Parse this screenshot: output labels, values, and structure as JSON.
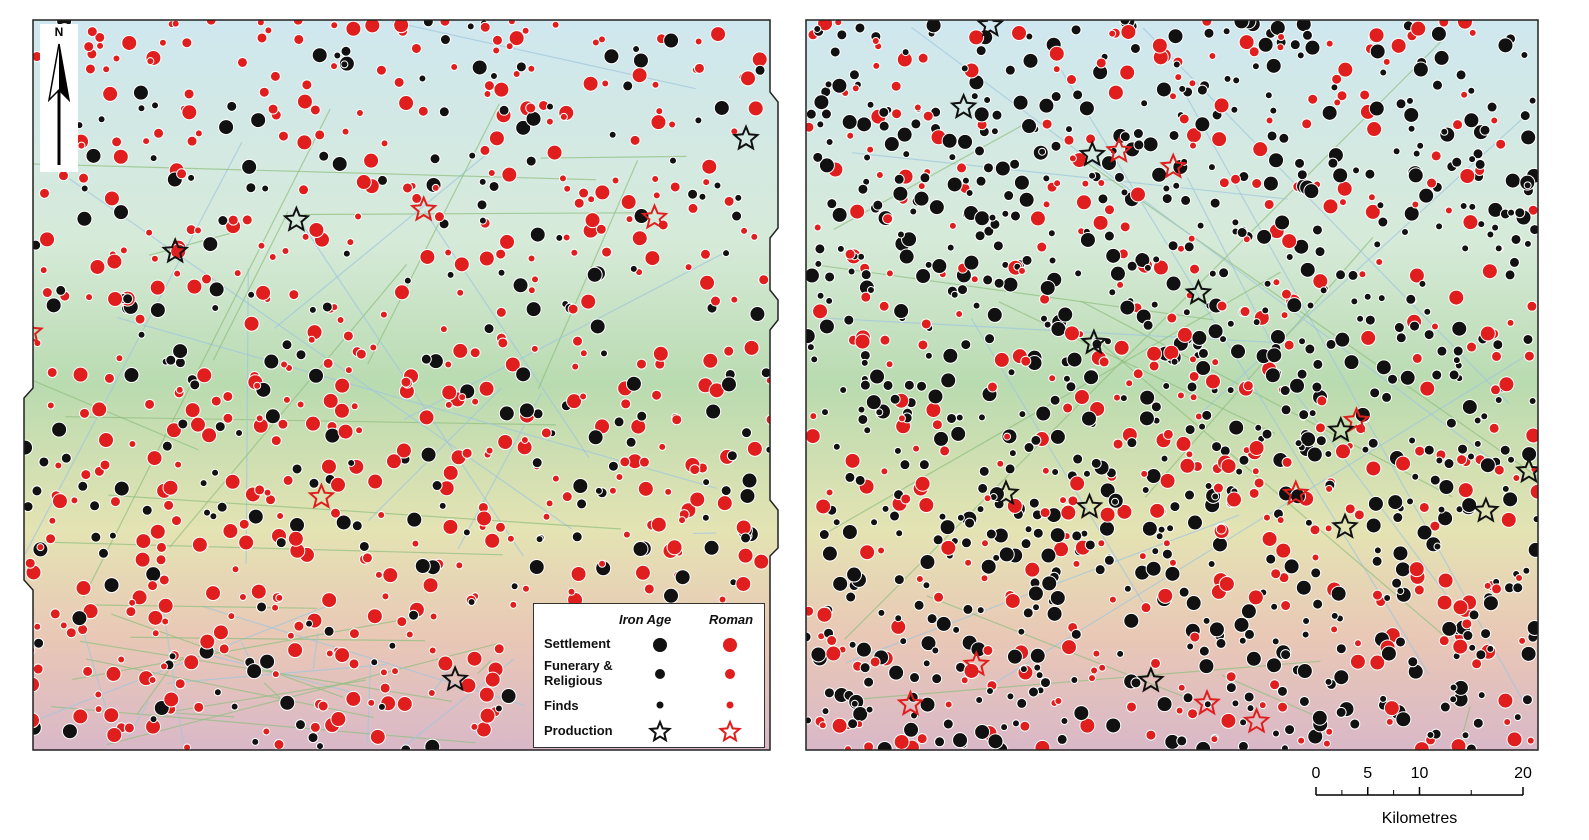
{
  "north_arrow": {
    "label": "N"
  },
  "legend": {
    "columns": [
      "Iron Age",
      "Roman"
    ],
    "rows": [
      "Settlement",
      "Funerary & Religious",
      "Finds",
      "Production"
    ]
  },
  "scale_bar": {
    "ticks": [
      0,
      5,
      10,
      20
    ],
    "label": "Kilometres"
  }
}
